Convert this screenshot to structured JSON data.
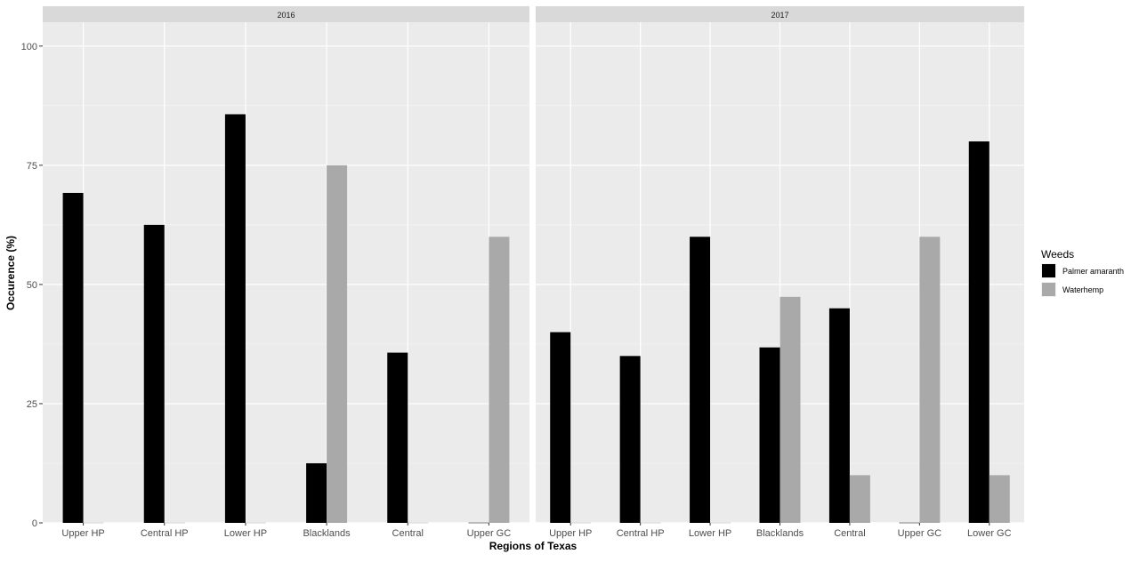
{
  "chart_data": {
    "type": "bar",
    "xlabel": "Regions of Texas",
    "ylabel": "Occurence (%)",
    "ylim": [
      0,
      105
    ],
    "yticks": [
      0,
      25,
      50,
      75,
      100
    ],
    "legend": {
      "title": "Weeds",
      "placement": "right",
      "entries": [
        {
          "name": "Palmer amaranth",
          "color": "#000000"
        },
        {
          "name": "Waterhemp",
          "color": "#a9a9a9"
        }
      ]
    },
    "grid": true,
    "panels": [
      {
        "label": "2016",
        "categories": [
          "Upper HP",
          "Central HP",
          "Lower HP",
          "Blacklands",
          "Central",
          "Upper GC"
        ],
        "series": [
          {
            "name": "Palmer amaranth",
            "values": [
              69.2,
              62.5,
              85.7,
              12.5,
              35.7,
              0
            ]
          },
          {
            "name": "Waterhemp",
            "values": [
              0,
              0,
              0,
              75,
              0,
              60
            ]
          }
        ]
      },
      {
        "label": "2017",
        "categories": [
          "Upper HP",
          "Central HP",
          "Lower HP",
          "Blacklands",
          "Central",
          "Upper GC",
          "Lower GC"
        ],
        "series": [
          {
            "name": "Palmer amaranth",
            "values": [
              40,
              35,
              60,
              36.8,
              45,
              0,
              80
            ]
          },
          {
            "name": "Waterhemp",
            "values": [
              0,
              0,
              0,
              47.4,
              10,
              60,
              10
            ]
          }
        ]
      }
    ]
  }
}
